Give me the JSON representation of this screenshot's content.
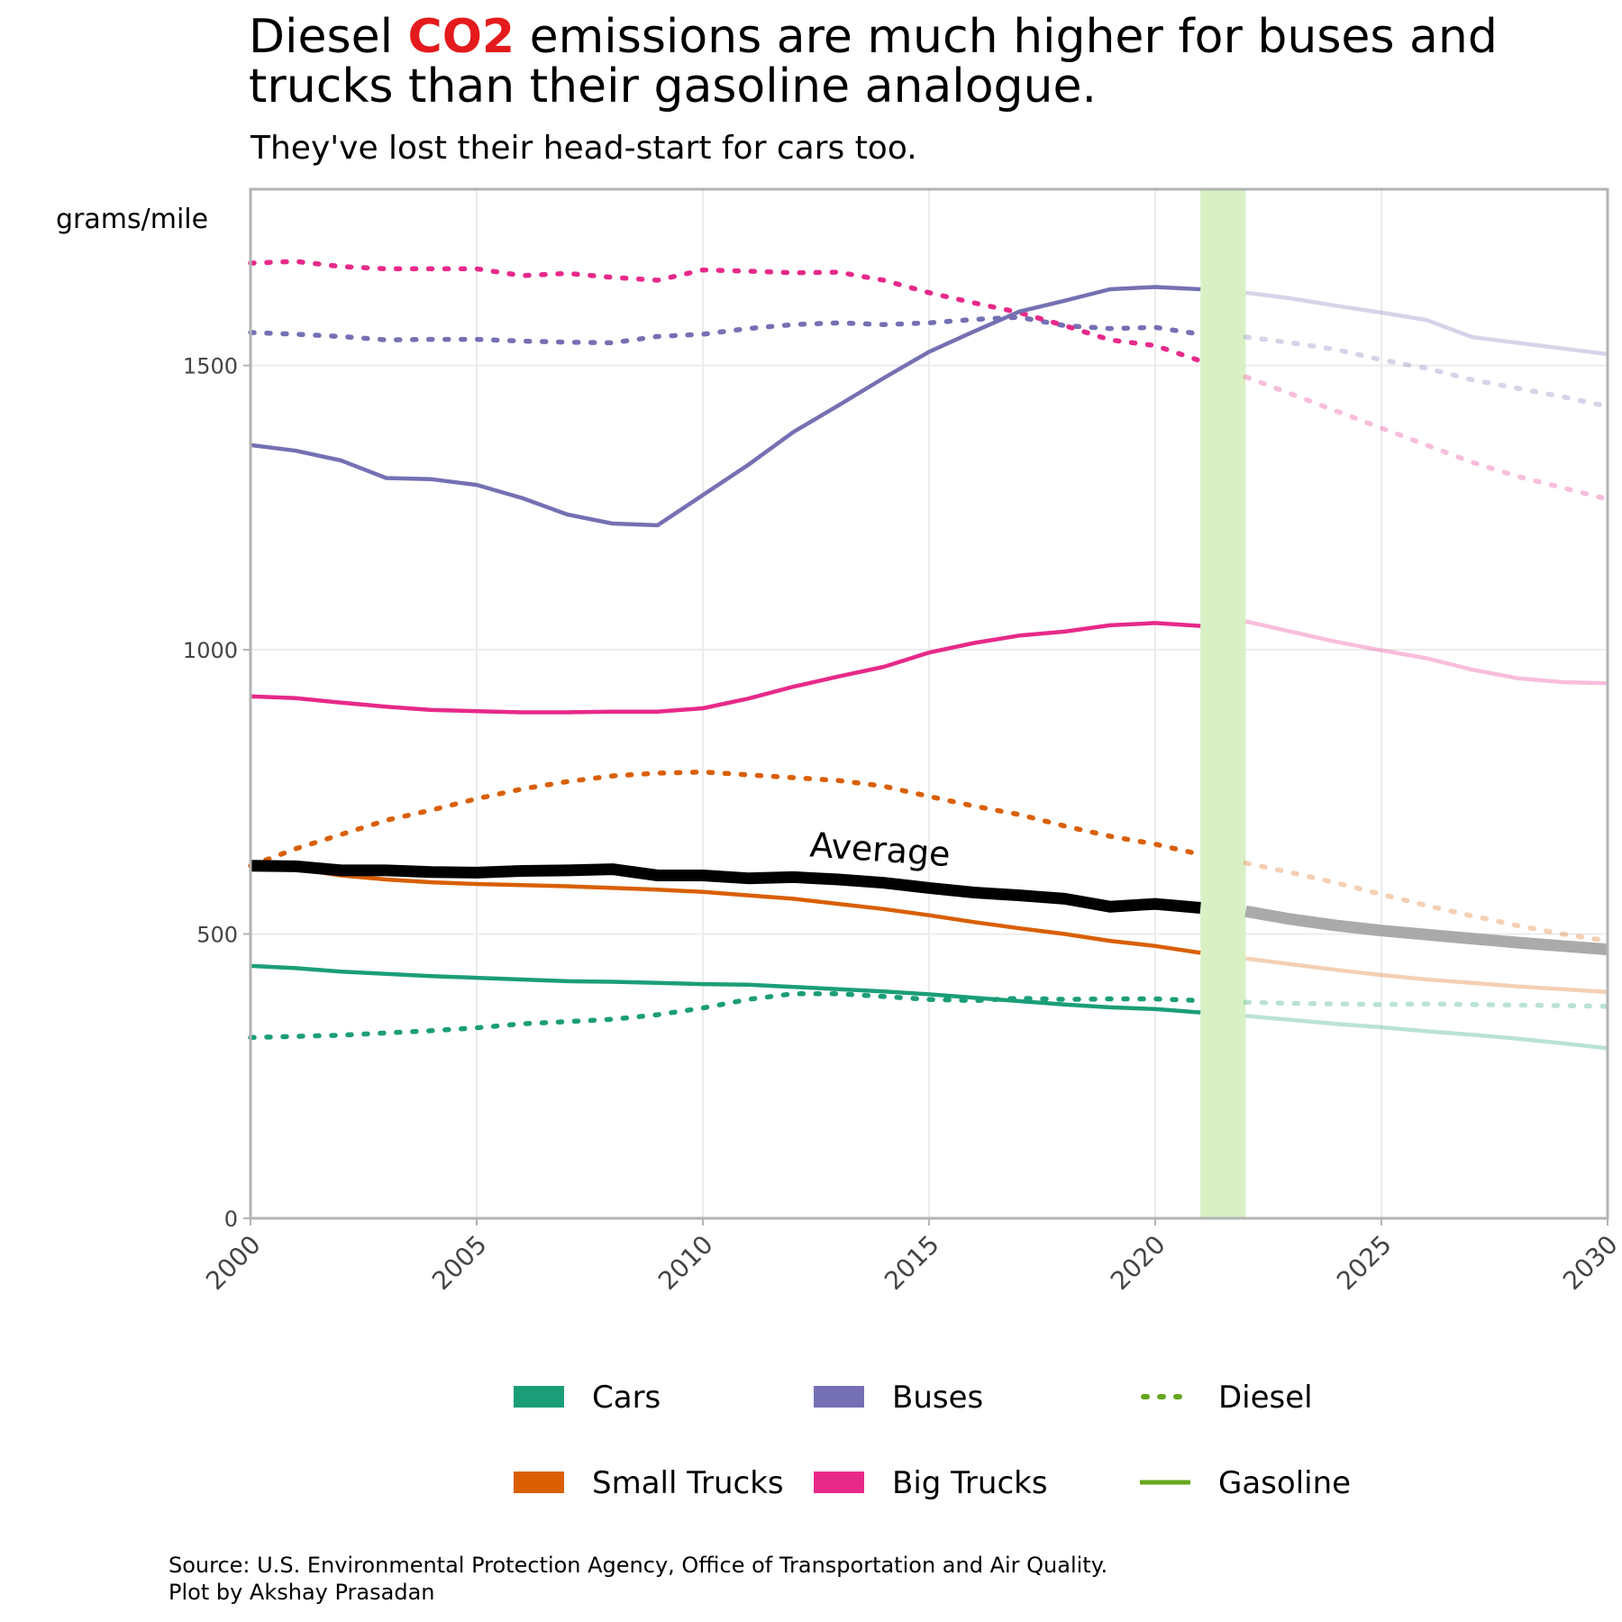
{
  "title": {
    "line1_pre": "Diesel ",
    "line1_highlight": "CO2",
    "line1_post": " emissions are much higher for buses and",
    "line2": "trucks than their gasoline analogue.",
    "highlight_color": "#e41a1c"
  },
  "subtitle": "They've lost their head-start for cars too.",
  "caption": {
    "line1": "Source: U.S. Environmental Protection Agency, Office of Transportation and Air Quality.",
    "line2": "Plot by Akshay Prasadan"
  },
  "legend": {
    "items": [
      {
        "label": "Cars",
        "kind": "swatch",
        "color": "#1b9e77"
      },
      {
        "label": "Buses",
        "kind": "swatch",
        "color": "#7570b3"
      },
      {
        "label": "Diesel",
        "kind": "dotted",
        "color": "#66a61e"
      },
      {
        "label": "Small Trucks",
        "kind": "swatch",
        "color": "#d95f02"
      },
      {
        "label": "Big Trucks",
        "kind": "swatch",
        "color": "#e7298a"
      },
      {
        "label": "Gasoline",
        "kind": "solid",
        "color": "#66a61e"
      }
    ]
  },
  "chart_data": {
    "type": "line",
    "ylabel": "grams/mile",
    "xlim": [
      2000,
      2030
    ],
    "ylim": [
      0,
      1800
    ],
    "x_ticks": [
      2000,
      2005,
      2010,
      2015,
      2020,
      2025,
      2030
    ],
    "y_ticks": [
      0,
      500,
      1000,
      1500
    ],
    "projection_start": 2022,
    "highlight_band": {
      "x": [
        2021,
        2022
      ],
      "color": "#d9f0c4"
    },
    "grid": true,
    "legend_position": "bottom",
    "annotation": {
      "text": "Average",
      "x": 2013.9,
      "y": 628
    },
    "series": [
      {
        "name": "Buses",
        "fuel": "Diesel",
        "color": "#7570b3",
        "x": [
          2000,
          2001,
          2002,
          2003,
          2004,
          2005,
          2006,
          2007,
          2008,
          2009,
          2010,
          2011,
          2012,
          2013,
          2014,
          2015,
          2016,
          2017,
          2018,
          2019,
          2020,
          2021,
          2022,
          2023,
          2024,
          2025,
          2026,
          2027,
          2028,
          2029,
          2030
        ],
        "y": [
          1558,
          1555,
          1551,
          1545,
          1546,
          1546,
          1543,
          1541,
          1540,
          1551,
          1555,
          1565,
          1572,
          1575,
          1572,
          1575,
          1581,
          1585,
          1570,
          1565,
          1567,
          1555,
          1550,
          1540,
          1528,
          1510,
          1495,
          1475,
          1460,
          1445,
          1428
        ]
      },
      {
        "name": "Big Trucks",
        "fuel": "Diesel",
        "color": "#e7298a",
        "x": [
          2000,
          2001,
          2002,
          2003,
          2004,
          2005,
          2006,
          2007,
          2008,
          2009,
          2010,
          2011,
          2012,
          2013,
          2014,
          2015,
          2016,
          2017,
          2018,
          2019,
          2020,
          2021,
          2022,
          2023,
          2024,
          2025,
          2026,
          2027,
          2028,
          2029,
          2030
        ],
        "y": [
          1680,
          1683,
          1674,
          1670,
          1670,
          1670,
          1658,
          1662,
          1655,
          1650,
          1668,
          1666,
          1663,
          1664,
          1650,
          1628,
          1610,
          1593,
          1570,
          1545,
          1535,
          1508,
          1480,
          1450,
          1420,
          1390,
          1360,
          1330,
          1305,
          1285,
          1265
        ]
      },
      {
        "name": "Small Trucks",
        "fuel": "Diesel",
        "color": "#d95f02",
        "x": [
          2000,
          2001,
          2002,
          2003,
          2004,
          2005,
          2006,
          2007,
          2008,
          2009,
          2010,
          2011,
          2012,
          2013,
          2014,
          2015,
          2016,
          2017,
          2018,
          2019,
          2020,
          2021,
          2022,
          2023,
          2024,
          2025,
          2026,
          2027,
          2028,
          2029,
          2030
        ],
        "y": [
          620,
          650,
          675,
          700,
          718,
          738,
          755,
          768,
          778,
          783,
          785,
          780,
          775,
          770,
          760,
          742,
          725,
          710,
          690,
          672,
          658,
          640,
          625,
          608,
          590,
          570,
          550,
          532,
          515,
          500,
          488
        ]
      },
      {
        "name": "Cars",
        "fuel": "Diesel",
        "color": "#1b9e77",
        "x": [
          2000,
          2001,
          2002,
          2003,
          2004,
          2005,
          2006,
          2007,
          2008,
          2009,
          2010,
          2011,
          2012,
          2013,
          2014,
          2015,
          2016,
          2017,
          2018,
          2019,
          2020,
          2021,
          2022,
          2023,
          2024,
          2025,
          2026,
          2027,
          2028,
          2029,
          2030
        ],
        "y": [
          318,
          320,
          322,
          326,
          330,
          335,
          342,
          346,
          350,
          358,
          370,
          385,
          395,
          395,
          390,
          385,
          383,
          387,
          385,
          386,
          386,
          383,
          380,
          378,
          377,
          376,
          377,
          376,
          375,
          374,
          373
        ]
      },
      {
        "name": "Buses",
        "fuel": "Gasoline",
        "color": "#7570b3",
        "x": [
          2000,
          2001,
          2002,
          2003,
          2004,
          2005,
          2006,
          2007,
          2008,
          2009,
          2010,
          2011,
          2012,
          2013,
          2014,
          2015,
          2016,
          2017,
          2018,
          2019,
          2020,
          2021,
          2022,
          2023,
          2024,
          2025,
          2026,
          2027,
          2028,
          2029,
          2030
        ],
        "y": [
          1360,
          1350,
          1333,
          1302,
          1300,
          1290,
          1267,
          1238,
          1222,
          1219,
          1272,
          1325,
          1383,
          1430,
          1478,
          1524,
          1560,
          1595,
          1614,
          1634,
          1638,
          1634,
          1628,
          1618,
          1605,
          1593,
          1580,
          1550,
          1540,
          1530,
          1520
        ]
      },
      {
        "name": "Big Trucks",
        "fuel": "Gasoline",
        "color": "#e7298a",
        "x": [
          2000,
          2001,
          2002,
          2003,
          2004,
          2005,
          2006,
          2007,
          2008,
          2009,
          2010,
          2011,
          2012,
          2013,
          2014,
          2015,
          2016,
          2017,
          2018,
          2019,
          2020,
          2021,
          2022,
          2023,
          2024,
          2025,
          2026,
          2027,
          2028,
          2029,
          2030
        ],
        "y": [
          918,
          915,
          907,
          900,
          894,
          892,
          890,
          890,
          891,
          891,
          897,
          914,
          935,
          953,
          970,
          995,
          1012,
          1025,
          1032,
          1043,
          1047,
          1042,
          1050,
          1032,
          1014,
          999,
          985,
          965,
          950,
          943,
          941
        ]
      },
      {
        "name": "Small Trucks",
        "fuel": "Gasoline",
        "color": "#d95f02",
        "x": [
          2000,
          2001,
          2002,
          2003,
          2004,
          2005,
          2006,
          2007,
          2008,
          2009,
          2010,
          2011,
          2012,
          2013,
          2014,
          2015,
          2016,
          2017,
          2018,
          2019,
          2020,
          2021,
          2022,
          2023,
          2024,
          2025,
          2026,
          2027,
          2028,
          2029,
          2030
        ],
        "y": [
          620,
          615,
          603,
          596,
          591,
          588,
          586,
          584,
          581,
          578,
          574,
          568,
          562,
          553,
          544,
          533,
          521,
          510,
          500,
          488,
          479,
          467,
          457,
          447,
          437,
          428,
          420,
          414,
          408,
          403,
          398
        ]
      },
      {
        "name": "Cars",
        "fuel": "Gasoline",
        "color": "#1b9e77",
        "x": [
          2000,
          2001,
          2002,
          2003,
          2004,
          2005,
          2006,
          2007,
          2008,
          2009,
          2010,
          2011,
          2012,
          2013,
          2014,
          2015,
          2016,
          2017,
          2018,
          2019,
          2020,
          2021,
          2022,
          2023,
          2024,
          2025,
          2026,
          2027,
          2028,
          2029,
          2030
        ],
        "y": [
          444,
          440,
          434,
          430,
          426,
          423,
          420,
          417,
          416,
          414,
          412,
          411,
          407,
          403,
          399,
          394,
          388,
          382,
          376,
          371,
          368,
          362,
          356,
          349,
          342,
          336,
          329,
          323,
          316,
          308,
          299
        ]
      },
      {
        "name": "Average",
        "fuel": "Average",
        "color": "#000000",
        "x": [
          2000,
          2001,
          2002,
          2003,
          2004,
          2005,
          2006,
          2007,
          2008,
          2009,
          2010,
          2011,
          2012,
          2013,
          2014,
          2015,
          2016,
          2017,
          2018,
          2019,
          2020,
          2021,
          2022,
          2023,
          2024,
          2025,
          2026,
          2027,
          2028,
          2029,
          2030
        ],
        "y": [
          620,
          619,
          612,
          612,
          609,
          608,
          611,
          612,
          614,
          603,
          603,
          598,
          600,
          596,
          590,
          581,
          573,
          568,
          562,
          548,
          553,
          546,
          540,
          526,
          515,
          506,
          499,
          492,
          485,
          479,
          473
        ]
      }
    ]
  }
}
